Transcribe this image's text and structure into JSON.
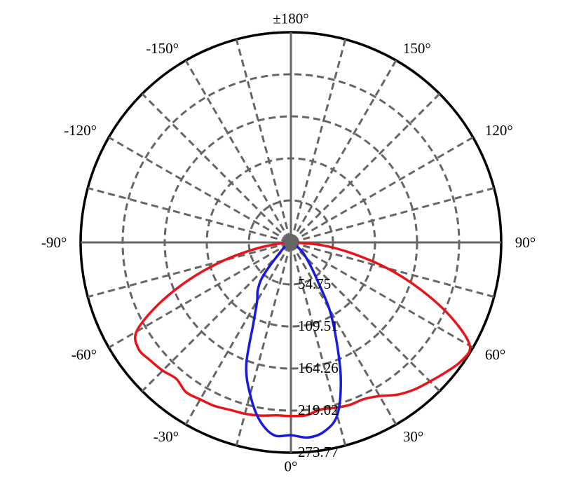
{
  "chart_data": {
    "type": "polar",
    "angle_labels": [
      {
        "angle": 180,
        "text": "±180°"
      },
      {
        "angle": 150,
        "text": "150°"
      },
      {
        "angle": -150,
        "text": "-150°"
      },
      {
        "angle": 120,
        "text": "120°"
      },
      {
        "angle": -120,
        "text": "-120°"
      },
      {
        "angle": 90,
        "text": "90°"
      },
      {
        "angle": -90,
        "text": "-90°"
      },
      {
        "angle": 60,
        "text": "60°"
      },
      {
        "angle": -60,
        "text": "-60°"
      },
      {
        "angle": 30,
        "text": "30°"
      },
      {
        "angle": -30,
        "text": "-30°"
      },
      {
        "angle": 0,
        "text": "0°"
      }
    ],
    "radial_ticks": [
      "54.75",
      "109.51",
      "164.26",
      "219.02",
      "273.77"
    ],
    "rmax": 273.77,
    "angle_step_grid": 15,
    "grid": true,
    "colors": {
      "red": "#e8141a",
      "blue": "#1a1adc",
      "grid": "#666666",
      "axis": "#000000"
    },
    "series": [
      {
        "color": "#e8141a",
        "points": [
          [
            -90,
            3
          ],
          [
            -85,
            14
          ],
          [
            -80,
            45
          ],
          [
            -75,
            90
          ],
          [
            -70,
            140
          ],
          [
            -65,
            190
          ],
          [
            -60,
            232
          ],
          [
            -55,
            242
          ],
          [
            -50,
            239
          ],
          [
            -45,
            236
          ],
          [
            -40,
            232
          ],
          [
            -35,
            238
          ],
          [
            -30,
            236
          ],
          [
            -25,
            235
          ],
          [
            -20,
            232
          ],
          [
            -15,
            231
          ],
          [
            -10,
            229
          ],
          [
            -5,
            226
          ],
          [
            0,
            226
          ],
          [
            5,
            226
          ],
          [
            10,
            221
          ],
          [
            15,
            223
          ],
          [
            20,
            225
          ],
          [
            25,
            225
          ],
          [
            30,
            231
          ],
          [
            35,
            242
          ],
          [
            40,
            250
          ],
          [
            45,
            256
          ],
          [
            50,
            263
          ],
          [
            55,
            270
          ],
          [
            60,
            269
          ],
          [
            65,
            230
          ],
          [
            70,
            180
          ],
          [
            75,
            130
          ],
          [
            80,
            80
          ],
          [
            85,
            40
          ],
          [
            90,
            3
          ]
        ]
      },
      {
        "color": "#1a1adc",
        "points": [
          [
            -60,
            5
          ],
          [
            -50,
            15
          ],
          [
            -40,
            55
          ],
          [
            -35,
            75
          ],
          [
            -30,
            88
          ],
          [
            -25,
            115
          ],
          [
            -20,
            170
          ],
          [
            -15,
            205
          ],
          [
            -10,
            235
          ],
          [
            -5,
            252
          ],
          [
            0,
            251
          ],
          [
            5,
            255
          ],
          [
            10,
            250
          ],
          [
            15,
            233
          ],
          [
            20,
            190
          ],
          [
            25,
            140
          ],
          [
            30,
            100
          ],
          [
            35,
            60
          ],
          [
            40,
            40
          ],
          [
            45,
            28
          ],
          [
            50,
            20
          ],
          [
            60,
            8
          ]
        ]
      }
    ]
  }
}
